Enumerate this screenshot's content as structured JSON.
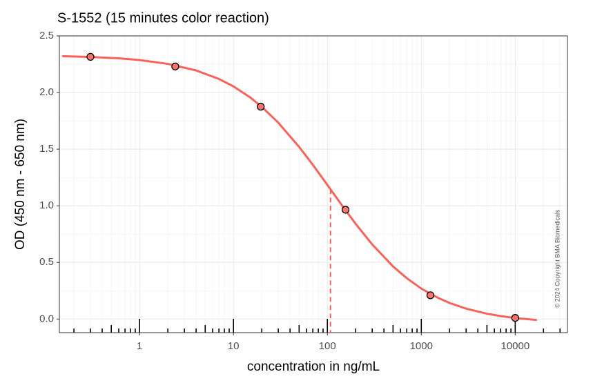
{
  "chart_data": {
    "type": "dose-response",
    "title": "S-1552 (15 minutes color reaction)",
    "x_label": "concentration in ng/mL",
    "y_label": "OD (450 nm - 650 nm)",
    "copyright": "© 2024 Copyright BMA Biomedicals",
    "x_log": true,
    "grid": true,
    "xlim": [
      0.14,
      36000
    ],
    "ylim": [
      -0.12,
      2.5
    ],
    "xticks": [
      1,
      10,
      100,
      1000,
      10000
    ],
    "xminor": [
      0.2,
      0.3,
      0.4,
      0.5,
      0.6,
      0.7,
      0.8,
      0.9,
      2,
      3,
      4,
      5,
      6,
      7,
      8,
      9,
      20,
      30,
      40,
      50,
      60,
      70,
      80,
      90,
      200,
      300,
      400,
      500,
      600,
      700,
      800,
      900,
      2000,
      3000,
      4000,
      5000,
      6000,
      7000,
      8000,
      9000,
      20000,
      30000
    ],
    "yticks": [
      {
        "value": 0,
        "label": "0.0"
      },
      {
        "value": 0.5,
        "label": "0.5"
      },
      {
        "value": 1,
        "label": "1.0"
      },
      {
        "value": 1.5,
        "label": "1.5"
      },
      {
        "value": 2,
        "label": "2.0"
      },
      {
        "value": 2.5,
        "label": "2.5"
      }
    ],
    "yminor": [
      0.25,
      0.75,
      1.25,
      1.75,
      2.25
    ],
    "points": {
      "color": "#f8766d",
      "x": [
        0.3,
        2.4,
        19.5,
        156,
        1250,
        10000
      ],
      "values": [
        2.315,
        2.23,
        1.875,
        0.965,
        0.21,
        0.01
      ],
      "errors": [
        0.015,
        0.015,
        0.015,
        0.02,
        0.01,
        0.01
      ]
    },
    "fit": {
      "color": "#f8625a",
      "x": [
        0.15,
        0.3,
        0.6,
        1,
        2,
        4,
        7,
        10,
        15,
        20,
        30,
        50,
        70,
        100,
        150,
        200,
        300,
        500,
        700,
        1000,
        1500,
        2000,
        3000,
        5000,
        7000,
        10000,
        17000
      ],
      "values": [
        2.321,
        2.314,
        2.302,
        2.287,
        2.253,
        2.195,
        2.12,
        2.054,
        1.958,
        1.874,
        1.734,
        1.52,
        1.362,
        1.184,
        0.98,
        0.841,
        0.659,
        0.465,
        0.361,
        0.269,
        0.188,
        0.142,
        0.092,
        0.047,
        0.026,
        0.009,
        -0.009
      ]
    },
    "midpoint": {
      "x": 108,
      "y": 1.146
    }
  }
}
